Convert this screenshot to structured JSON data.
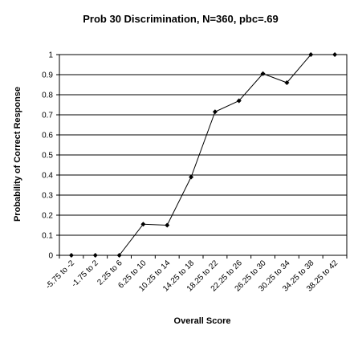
{
  "chart_data": {
    "type": "line",
    "title": "Prob 30 Discrimination, N=360, pbc=.69",
    "xlabel": "Overall Score",
    "ylabel": "Probability of Correct Response",
    "ylim": [
      0,
      1
    ],
    "yticks": [
      "0",
      "0.1",
      "0.2",
      "0.3",
      "0.4",
      "0.5",
      "0.6",
      "0.7",
      "0.8",
      "0.9",
      "1"
    ],
    "grid": true,
    "categories": [
      "-5.75 to -2",
      "-1.75 to 2",
      "2.25 to 6",
      "6.25 to 10",
      "10.25 to 14",
      "14.25 to 18",
      "18.25 to 22",
      "22.25 to 26",
      "26.25 to 30",
      "30.25 to 34",
      "34.25 to 38",
      "38.25 to 42"
    ],
    "series": [
      {
        "values": [
          0,
          0,
          0,
          0.155,
          0.15,
          0.39,
          0.715,
          0.77,
          0.905,
          0.86,
          1,
          1
        ]
      }
    ],
    "colors": {
      "line": "#000000",
      "grid": "#000000",
      "axis": "#000000"
    }
  }
}
